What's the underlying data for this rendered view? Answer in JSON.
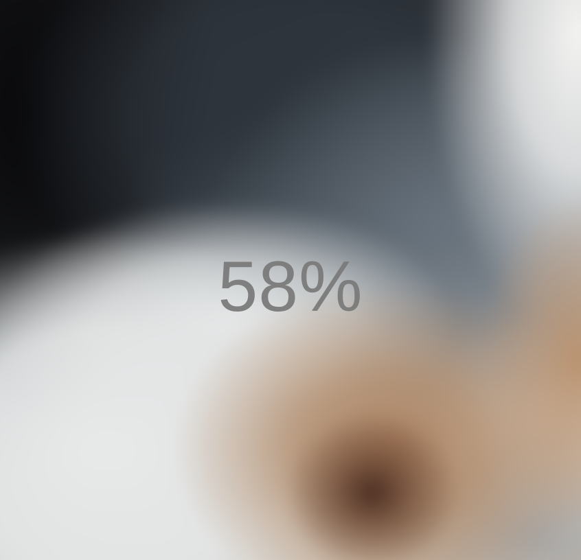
{
  "progress": {
    "value_percent": 58,
    "label": "58%"
  },
  "colors": {
    "label_text": "#7b7b7b"
  }
}
